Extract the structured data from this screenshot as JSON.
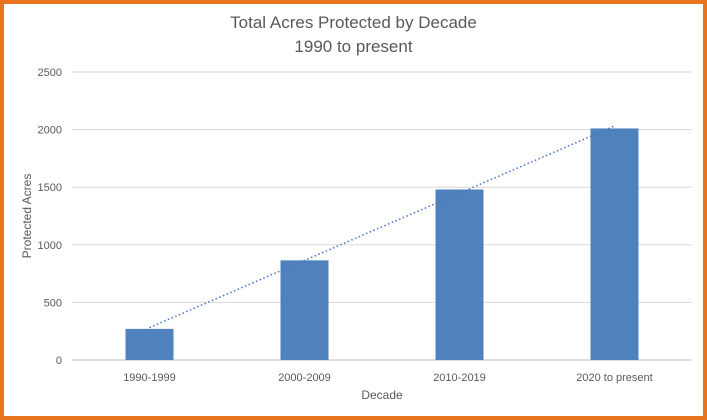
{
  "colors": {
    "border": "#e8741e",
    "bar": "#4f81bd",
    "trendline": "#4472c4",
    "grid": "#d9d9d9",
    "text": "#595959"
  },
  "chart_data": {
    "type": "bar",
    "title": "Total Acres Protected by Decade",
    "subtitle": "1990 to present",
    "xlabel": "Decade",
    "ylabel": "Protected Acres",
    "categories": [
      "1990-1999",
      "2000-2009",
      "2010-2019",
      "2020 to present"
    ],
    "values": [
      270,
      865,
      1480,
      2010
    ],
    "ylim": [
      0,
      2500
    ],
    "yticks": [
      "0",
      "500",
      "1000",
      "1500",
      "2000",
      "2500"
    ],
    "grid": true,
    "trendline": "linear, dotted",
    "legend": "none"
  }
}
